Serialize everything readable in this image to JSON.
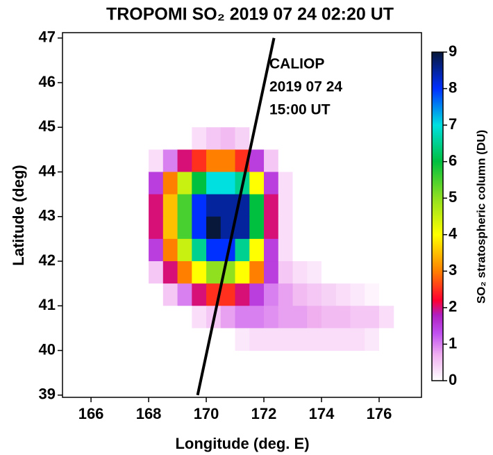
{
  "chart_data": {
    "type": "heatmap",
    "title": "TROPOMI SO₂ 2019 07 24 02:20 UT",
    "x_label": "Longitude (deg. E)",
    "y_label": "Latitude (deg)",
    "colorbar_label": "SO₂ stratospheric column (DU)",
    "xlim": [
      165.01,
      177.47
    ],
    "xticks": [
      166,
      168,
      170,
      172,
      174,
      176
    ],
    "ylim": [
      38.95,
      47.12
    ],
    "yticks": [
      39,
      40,
      41,
      42,
      43,
      44,
      45,
      46,
      47
    ],
    "zlim": [
      0,
      9
    ],
    "zticks": [
      0,
      1,
      2,
      3,
      4,
      5,
      6,
      7,
      8,
      9
    ],
    "colorscale": [
      [
        0,
        "#ffffff"
      ],
      [
        0.7,
        "#f0b0f0"
      ],
      [
        1.3,
        "#c050f0"
      ],
      [
        1.8,
        "#b020c0"
      ],
      [
        2.2,
        "#ff0030"
      ],
      [
        3,
        "#ff8000"
      ],
      [
        4,
        "#ffff00"
      ],
      [
        5,
        "#90e020"
      ],
      [
        6,
        "#00c040"
      ],
      [
        7,
        "#00e0e0"
      ],
      [
        8,
        "#0030ff"
      ],
      [
        9,
        "#08183a"
      ]
    ],
    "x": [
      168.25,
      168.75,
      169.25,
      169.75,
      170.25,
      170.75,
      171.25,
      171.75,
      172.25,
      172.75,
      173.25,
      173.75,
      174.25,
      174.75,
      175.25,
      175.75,
      176.25
    ],
    "y": [
      44.75,
      44.25,
      43.75,
      43.25,
      42.75,
      42.25,
      41.75,
      41.25,
      40.75,
      40.25
    ],
    "z": [
      [
        0,
        0,
        0,
        0.3,
        0.5,
        0.6,
        0.4,
        0,
        0,
        0,
        0,
        0,
        0,
        0,
        0,
        0,
        0
      ],
      [
        0.3,
        1,
        2,
        2.5,
        3,
        3,
        2.5,
        1.5,
        0.5,
        0,
        0,
        0,
        0,
        0,
        0,
        0,
        0
      ],
      [
        1.5,
        3,
        4.5,
        6,
        7,
        7,
        6.5,
        4,
        1.5,
        0.3,
        0,
        0,
        0,
        0,
        0,
        0,
        0
      ],
      [
        2,
        3.5,
        5.5,
        8,
        8.5,
        8.5,
        8.5,
        6,
        2,
        0.3,
        0,
        0,
        0,
        0,
        0,
        0,
        0
      ],
      [
        2,
        3.5,
        5.5,
        8,
        9,
        8.5,
        8.5,
        6,
        2,
        0.3,
        0,
        0,
        0,
        0,
        0,
        0,
        0
      ],
      [
        1.5,
        3,
        4.5,
        6.5,
        8,
        8,
        6.5,
        4,
        1.5,
        0.3,
        0,
        0,
        0,
        0,
        0,
        0,
        0
      ],
      [
        0.5,
        2,
        3,
        4,
        5,
        5,
        4,
        3,
        1.5,
        0.5,
        0.3,
        0.2,
        0,
        0,
        0,
        0,
        0
      ],
      [
        0,
        0.5,
        1,
        2,
        2.5,
        2.5,
        2,
        1.5,
        1,
        0.8,
        0.6,
        0.5,
        0.4,
        0.3,
        0.2,
        0.1,
        0
      ],
      [
        0,
        0,
        0,
        0.3,
        0.5,
        0.8,
        1,
        1,
        0.9,
        0.8,
        0.8,
        0.7,
        0.6,
        0.6,
        0.5,
        0.5,
        0.3
      ],
      [
        0,
        0,
        0,
        0,
        0,
        0,
        0.2,
        0.3,
        0.3,
        0.3,
        0.3,
        0.3,
        0.3,
        0.3,
        0.3,
        0.2,
        0
      ]
    ],
    "track": {
      "x": [
        169.7,
        172.35
      ],
      "y": [
        39,
        47
      ],
      "label": [
        "CALIOP",
        "2019 07 24",
        "15:00 UT"
      ]
    }
  }
}
